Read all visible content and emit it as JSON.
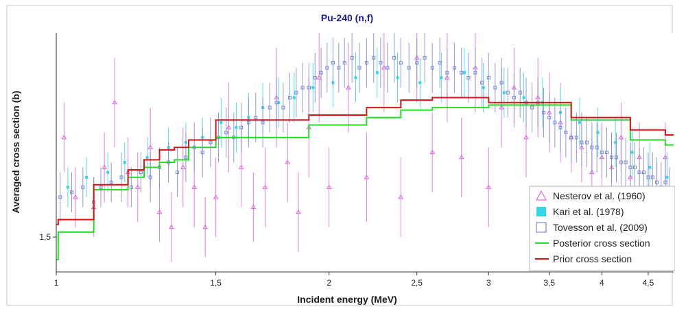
{
  "chart_data": {
    "type": "scatter",
    "title": "Pu-240 (n,f)",
    "xlabel": "Incident energy (MeV)",
    "ylabel": "Averaged cross section (b)",
    "x_scale": "log",
    "xlim": [
      1.0,
      4.8
    ],
    "ylim": [
      1.43,
      1.91
    ],
    "x_ticks": [
      1,
      1.5,
      2,
      2.5,
      3,
      3.5,
      4,
      4.5
    ],
    "x_tick_labels": [
      "1",
      "1,5",
      "2",
      "2,5",
      "3",
      "3,5",
      "4",
      "4,5"
    ],
    "y_ticks": [
      1.5
    ],
    "y_tick_labels": [
      "1,5"
    ],
    "grid": false,
    "legend_position": "bottom-right",
    "legend": [
      {
        "label": "Nesterov et al. (1960)",
        "marker": "triangle-open",
        "color": "#e066e0"
      },
      {
        "label": "Kari et al. (1978)",
        "marker": "square-filled",
        "color": "#33d6e6"
      },
      {
        "label": "Tovesson et al. (2009)",
        "marker": "square-open",
        "color": "#7a86d6"
      },
      {
        "label": "Posterior cross section",
        "marker": "line",
        "color": "#22dd22"
      },
      {
        "label": "Prior cross section",
        "marker": "line",
        "color": "#dd1111"
      }
    ],
    "prior_step": {
      "color": "#dd1111",
      "edges": [
        1.0,
        1.005,
        1.1,
        1.2,
        1.25,
        1.3,
        1.35,
        1.4,
        1.5,
        1.9,
        2.2,
        2.4,
        2.6,
        3.0,
        3.7,
        4.3,
        4.7,
        4.8
      ],
      "values": [
        1.525,
        1.535,
        1.605,
        1.635,
        1.655,
        1.675,
        1.68,
        1.695,
        1.735,
        1.745,
        1.76,
        1.775,
        1.78,
        1.77,
        1.74,
        1.715,
        1.705
      ]
    },
    "posterior_step": {
      "color": "#22dd22",
      "edges": [
        1.0,
        1.005,
        1.1,
        1.2,
        1.25,
        1.3,
        1.35,
        1.4,
        1.5,
        1.9,
        2.2,
        2.4,
        2.6,
        3.0,
        3.7,
        4.3,
        4.7,
        4.8
      ],
      "values": [
        1.455,
        1.51,
        1.595,
        1.62,
        1.64,
        1.65,
        1.655,
        1.68,
        1.7,
        1.725,
        1.74,
        1.755,
        1.76,
        1.765,
        1.735,
        1.695,
        1.685
      ]
    },
    "series": [
      {
        "name": "Nesterov et al. (1960)",
        "color": "#e066e0",
        "marker": "triangle",
        "x": [
          1.02,
          1.05,
          1.1,
          1.13,
          1.16,
          1.2,
          1.23,
          1.27,
          1.3,
          1.34,
          1.38,
          1.42,
          1.46,
          1.5,
          1.55,
          1.6,
          1.65,
          1.7,
          1.75,
          1.8,
          1.85,
          1.9,
          1.95,
          2.0,
          2.1,
          2.2,
          2.3,
          2.4,
          2.5,
          2.6,
          2.7,
          2.8,
          2.9,
          3.0,
          3.1,
          3.2,
          3.3,
          3.4,
          3.5,
          3.6,
          3.7,
          3.8,
          3.9,
          4.0,
          4.1,
          4.2,
          4.3,
          4.4,
          4.5,
          4.6,
          4.7
        ],
        "y": [
          1.7,
          1.58,
          1.56,
          1.64,
          1.77,
          1.63,
          1.6,
          1.68,
          1.55,
          1.52,
          1.64,
          1.6,
          1.52,
          1.58,
          1.72,
          1.64,
          1.56,
          1.6,
          1.78,
          1.65,
          1.55,
          1.72,
          1.82,
          1.6,
          1.8,
          1.62,
          1.84,
          1.58,
          1.86,
          1.67,
          1.82,
          1.66,
          1.84,
          1.6,
          1.76,
          1.8,
          1.7,
          1.78,
          1.75,
          1.73,
          1.7,
          1.68,
          1.63,
          1.66,
          1.64,
          1.7,
          1.62,
          1.66,
          1.6,
          1.58,
          1.66
        ],
        "err": [
          0.07,
          0.06,
          0.06,
          0.07,
          0.09,
          0.07,
          0.07,
          0.08,
          0.06,
          0.07,
          0.08,
          0.08,
          0.06,
          0.08,
          0.09,
          0.08,
          0.07,
          0.08,
          0.1,
          0.08,
          0.08,
          0.1,
          0.09,
          0.08,
          0.09,
          0.09,
          0.09,
          0.08,
          0.09,
          0.08,
          0.09,
          0.08,
          0.09,
          0.08,
          0.08,
          0.08,
          0.08,
          0.08,
          0.08,
          0.08,
          0.07,
          0.07,
          0.07,
          0.07,
          0.07,
          0.07,
          0.07,
          0.07,
          0.07,
          0.07,
          0.07
        ]
      },
      {
        "name": "Kari et al. (1978)",
        "color": "#33d6e6",
        "marker": "square-filled",
        "x": [
          1.03,
          1.08,
          1.14,
          1.19,
          1.26,
          1.33,
          1.39,
          1.45,
          1.52,
          1.58,
          1.63,
          1.69,
          1.76,
          1.83,
          1.92,
          2.02,
          2.14,
          2.26,
          2.38,
          2.52,
          2.66,
          2.82,
          2.96,
          3.12,
          3.28,
          3.44,
          3.6,
          3.78,
          3.96,
          4.14,
          4.32,
          4.52,
          4.72
        ],
        "y": [
          1.6,
          1.62,
          1.63,
          1.65,
          1.66,
          1.68,
          1.69,
          1.7,
          1.73,
          1.72,
          1.74,
          1.76,
          1.77,
          1.78,
          1.8,
          1.81,
          1.82,
          1.83,
          1.82,
          1.81,
          1.82,
          1.83,
          1.8,
          1.79,
          1.78,
          1.77,
          1.75,
          1.73,
          1.71,
          1.69,
          1.67,
          1.64,
          1.62
        ],
        "err": [
          0.04,
          0.04,
          0.04,
          0.04,
          0.04,
          0.04,
          0.04,
          0.04,
          0.05,
          0.05,
          0.05,
          0.05,
          0.05,
          0.05,
          0.05,
          0.05,
          0.05,
          0.05,
          0.05,
          0.05,
          0.05,
          0.05,
          0.05,
          0.05,
          0.05,
          0.05,
          0.05,
          0.05,
          0.05,
          0.05,
          0.05,
          0.05,
          0.05
        ]
      },
      {
        "name": "Tovesson et al. (2009)",
        "color": "#7a86d6",
        "marker": "square-open",
        "x": [
          1.01,
          1.04,
          1.07,
          1.1,
          1.12,
          1.15,
          1.18,
          1.21,
          1.24,
          1.27,
          1.3,
          1.33,
          1.36,
          1.39,
          1.42,
          1.45,
          1.48,
          1.51,
          1.54,
          1.57,
          1.6,
          1.63,
          1.66,
          1.69,
          1.72,
          1.75,
          1.78,
          1.81,
          1.84,
          1.87,
          1.9,
          1.93,
          1.96,
          1.99,
          2.02,
          2.05,
          2.08,
          2.12,
          2.16,
          2.2,
          2.24,
          2.28,
          2.32,
          2.36,
          2.4,
          2.45,
          2.5,
          2.55,
          2.6,
          2.65,
          2.7,
          2.75,
          2.8,
          2.85,
          2.9,
          2.95,
          3.0,
          3.05,
          3.1,
          3.15,
          3.2,
          3.25,
          3.3,
          3.35,
          3.4,
          3.45,
          3.5,
          3.55,
          3.6,
          3.65,
          3.7,
          3.75,
          3.8,
          3.85,
          3.9,
          3.95,
          4.0,
          4.05,
          4.1,
          4.15,
          4.2,
          4.25,
          4.3,
          4.35,
          4.4,
          4.45,
          4.5,
          4.55,
          4.6,
          4.65,
          4.7,
          4.75
        ],
        "y": [
          1.58,
          1.59,
          1.6,
          1.57,
          1.6,
          1.61,
          1.62,
          1.6,
          1.63,
          1.62,
          1.64,
          1.65,
          1.63,
          1.66,
          1.68,
          1.67,
          1.69,
          1.7,
          1.71,
          1.7,
          1.72,
          1.73,
          1.74,
          1.73,
          1.76,
          1.77,
          1.76,
          1.78,
          1.79,
          1.8,
          1.8,
          1.82,
          1.83,
          1.84,
          1.85,
          1.84,
          1.85,
          1.86,
          1.84,
          1.85,
          1.86,
          1.85,
          1.84,
          1.86,
          1.85,
          1.84,
          1.85,
          1.86,
          1.84,
          1.85,
          1.83,
          1.84,
          1.83,
          1.82,
          1.83,
          1.81,
          1.82,
          1.8,
          1.81,
          1.79,
          1.78,
          1.79,
          1.77,
          1.76,
          1.77,
          1.75,
          1.74,
          1.73,
          1.72,
          1.71,
          1.7,
          1.7,
          1.69,
          1.69,
          1.68,
          1.68,
          1.67,
          1.67,
          1.66,
          1.66,
          1.65,
          1.65,
          1.64,
          1.64,
          1.63,
          1.63,
          1.62,
          1.62,
          1.61,
          1.6,
          1.61,
          1.59
        ],
        "err": [
          0.05,
          0.04,
          0.04,
          0.05,
          0.04,
          0.04,
          0.05,
          0.04,
          0.04,
          0.05,
          0.04,
          0.04,
          0.05,
          0.05,
          0.05,
          0.05,
          0.05,
          0.05,
          0.05,
          0.05,
          0.05,
          0.05,
          0.05,
          0.05,
          0.05,
          0.05,
          0.05,
          0.05,
          0.05,
          0.05,
          0.05,
          0.05,
          0.05,
          0.05,
          0.05,
          0.05,
          0.05,
          0.05,
          0.05,
          0.05,
          0.05,
          0.05,
          0.05,
          0.05,
          0.05,
          0.05,
          0.05,
          0.05,
          0.05,
          0.05,
          0.05,
          0.05,
          0.05,
          0.05,
          0.05,
          0.05,
          0.05,
          0.05,
          0.05,
          0.05,
          0.05,
          0.05,
          0.05,
          0.05,
          0.05,
          0.05,
          0.05,
          0.05,
          0.05,
          0.05,
          0.05,
          0.05,
          0.05,
          0.05,
          0.05,
          0.05,
          0.05,
          0.05,
          0.05,
          0.05,
          0.05,
          0.05,
          0.05,
          0.05,
          0.05,
          0.05,
          0.05,
          0.05,
          0.05,
          0.05,
          0.05,
          0.05
        ]
      }
    ]
  }
}
